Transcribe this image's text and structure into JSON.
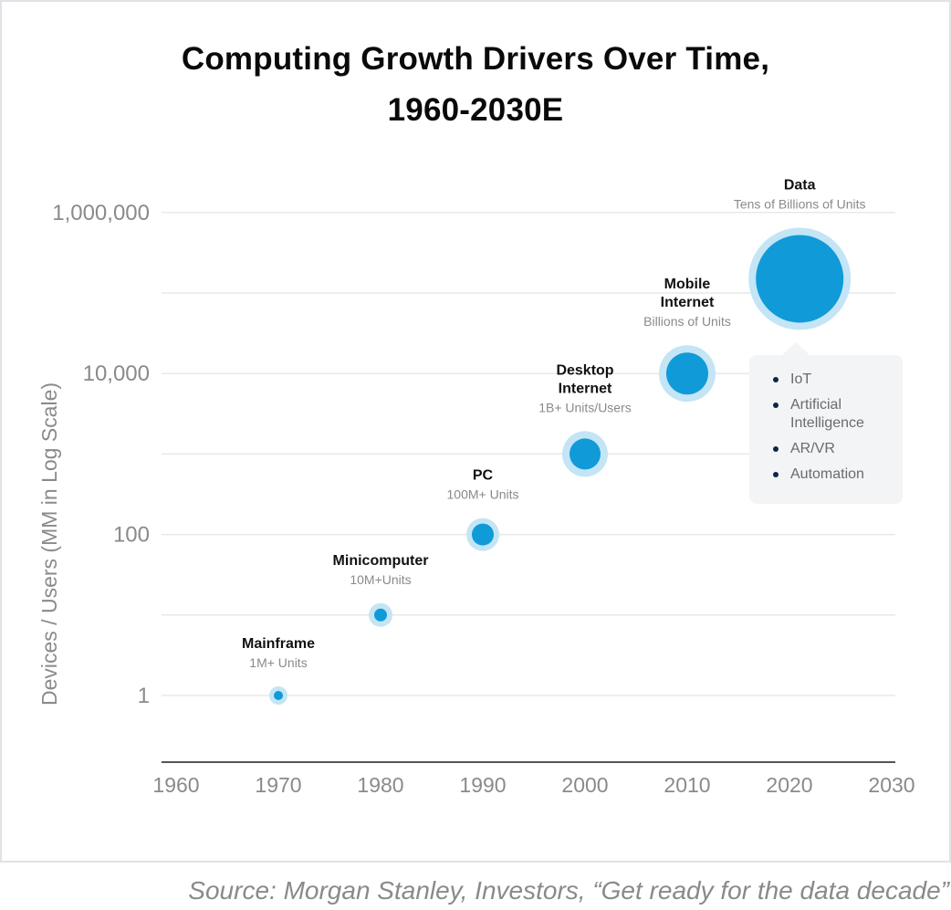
{
  "chart_data": {
    "type": "scatter",
    "subtype": "bubble",
    "title": "Computing Growth Drivers Over Time, 1960-2030E",
    "title_lines": [
      "Computing Growth Drivers Over Time,",
      "1960-2030E"
    ],
    "xlabel": "",
    "ylabel": "Devices / Users (MM in Log Scale)",
    "xlim": [
      1960,
      2030
    ],
    "ylim_log10": [
      -0.8,
      6
    ],
    "y_scale": "log",
    "grid": true,
    "x_ticks": [
      "1960",
      "1970",
      "1980",
      "1990",
      "2000",
      "2010",
      "2020",
      "2030"
    ],
    "x_tick_values": [
      1960,
      1970,
      1980,
      1990,
      2000,
      2010,
      2020,
      2030
    ],
    "y_ticks": [
      {
        "value": 1,
        "label": "1"
      },
      {
        "value": 10,
        "label": ""
      },
      {
        "value": 100,
        "label": "100"
      },
      {
        "value": 1000,
        "label": ""
      },
      {
        "value": 10000,
        "label": "10,000"
      },
      {
        "value": 100000,
        "label": ""
      },
      {
        "value": 1000000,
        "label": "1,000,000"
      }
    ],
    "points": [
      {
        "name": "Mainframe",
        "name_lines": [
          "Mainframe"
        ],
        "subtitle": "1M+ Units",
        "x": 1970,
        "y": 1,
        "size": 1
      },
      {
        "name": "Minicomputer",
        "name_lines": [
          "Minicomputer"
        ],
        "subtitle": "10M+Units",
        "x": 1980,
        "y": 10,
        "size": 2
      },
      {
        "name": "PC",
        "name_lines": [
          "PC"
        ],
        "subtitle": "100M+ Units",
        "x": 1990,
        "y": 100,
        "size": 3
      },
      {
        "name": "Desktop Internet",
        "name_lines": [
          "Desktop",
          "Internet"
        ],
        "subtitle": "1B+ Units/Users",
        "x": 2000,
        "y": 1000,
        "size": 4
      },
      {
        "name": "Mobile Internet",
        "name_lines": [
          "Mobile",
          "Internet"
        ],
        "subtitle": "Billions of Units",
        "x": 2010,
        "y": 10000,
        "size": 5
      },
      {
        "name": "Data",
        "name_lines": [
          "Data"
        ],
        "subtitle": "Tens of Billions of Units",
        "x": 2021,
        "y": 150000,
        "size": 6
      }
    ],
    "annotation": {
      "attached_to": "Data",
      "items": [
        "IoT",
        "Artificial Intelligence",
        "AR/VR",
        "Automation"
      ]
    },
    "colors": {
      "bubble": "#109ad8",
      "bubble_halo": "#c3e5f5",
      "gridline": "#e8e8e8",
      "axis": "#555555",
      "tick_label": "#8a8a8a",
      "point_title": "#111111",
      "point_subtitle": "#8a8a8a"
    }
  },
  "source": "Source: Morgan Stanley, Investors, “Get ready for the data decade”"
}
